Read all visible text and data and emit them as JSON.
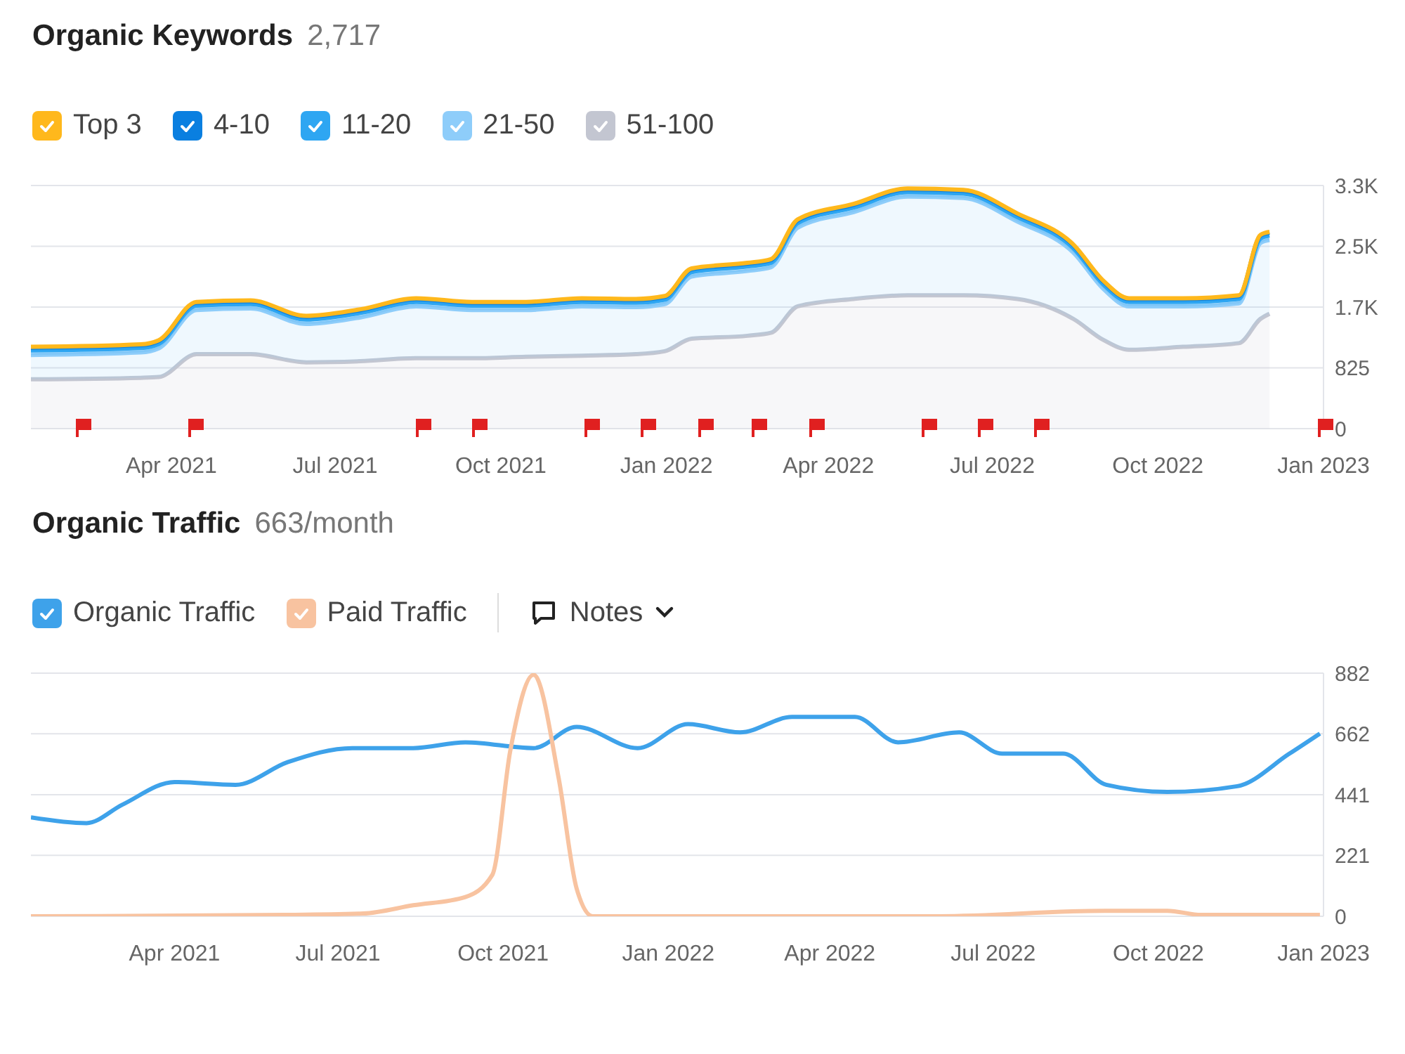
{
  "chart_data": [
    {
      "type": "area",
      "title": "Organic Keywords",
      "subtitle": "2,717",
      "stacked": true,
      "legend": "top left",
      "grid": "y",
      "x": [
        "2021-01-13",
        "2021-03-15",
        "2021-03-25",
        "2021-04-15",
        "2021-05-15",
        "2021-06-15",
        "2021-07-15",
        "2021-08-15",
        "2021-09-15",
        "2021-10-15",
        "2021-11-15",
        "2021-12-15",
        "2021-12-31",
        "2022-01-15",
        "2022-02-15",
        "2022-02-28",
        "2022-03-15",
        "2022-04-15",
        "2022-05-15",
        "2022-06-15",
        "2022-07-15",
        "2022-08-15",
        "2022-09-01",
        "2022-09-15",
        "2022-10-15",
        "2022-11-15",
        "2022-11-27",
        "2022-12-02"
      ],
      "series": [
        {
          "name": "51-100",
          "color": "#c3c6d1",
          "values": [
            670,
            690,
            700,
            1010,
            1010,
            900,
            915,
            955,
            955,
            975,
            990,
            1010,
            1050,
            1220,
            1260,
            1300,
            1660,
            1760,
            1810,
            1810,
            1760,
            1490,
            1200,
            1070,
            1110,
            1160,
            1490,
            1560
          ]
        },
        {
          "name": "21-50",
          "color": "#8ecdfa",
          "values": [
            330,
            345,
            390,
            600,
            620,
            520,
            595,
            705,
            655,
            635,
            670,
            640,
            640,
            845,
            880,
            890,
            1070,
            1180,
            1340,
            1320,
            1050,
            900,
            690,
            590,
            550,
            540,
            1030,
            1000
          ]
        },
        {
          "name": "11-20",
          "color": "#2ea6f2",
          "values": [
            60,
            60,
            60,
            60,
            60,
            60,
            60,
            60,
            60,
            60,
            60,
            60,
            60,
            60,
            60,
            60,
            60,
            60,
            60,
            60,
            60,
            60,
            60,
            60,
            60,
            60,
            60,
            60
          ]
        },
        {
          "name": "4-10",
          "color": "#0a7fe0",
          "values": [
            40,
            40,
            40,
            40,
            40,
            40,
            40,
            40,
            40,
            40,
            40,
            40,
            40,
            40,
            40,
            40,
            40,
            40,
            40,
            40,
            40,
            40,
            40,
            40,
            40,
            40,
            40,
            40
          ]
        },
        {
          "name": "Top 3",
          "color": "#ffb81c",
          "values": [
            10,
            10,
            10,
            10,
            10,
            10,
            10,
            10,
            10,
            10,
            10,
            10,
            10,
            10,
            10,
            10,
            10,
            10,
            10,
            10,
            10,
            10,
            10,
            10,
            10,
            10,
            10,
            10
          ]
        }
      ],
      "xlim": [
        "2021-01-13",
        "2023-01-01"
      ],
      "xticks": [
        {
          "value": "2021-04-01",
          "label": "Apr 2021"
        },
        {
          "value": "2021-07-01",
          "label": "Jul 2021"
        },
        {
          "value": "2021-10-01",
          "label": "Oct 2021"
        },
        {
          "value": "2022-01-01",
          "label": "Jan 2022"
        },
        {
          "value": "2022-04-01",
          "label": "Apr 2022"
        },
        {
          "value": "2022-07-01",
          "label": "Jul 2022"
        },
        {
          "value": "2022-10-01",
          "label": "Oct 2022"
        },
        {
          "value": "2023-01-01",
          "label": "Jan 2023"
        }
      ],
      "ylim": [
        0,
        3300
      ],
      "yticks": [
        0,
        825,
        {
          "value": 1650,
          "label": "1.7K"
        },
        {
          "value": 2475,
          "label": "2.5K"
        },
        {
          "value": 3300,
          "label": "3.3K"
        }
      ]
    },
    {
      "type": "line",
      "title": "Organic Traffic",
      "subtitle": "663/month",
      "legend": "top left",
      "grid": "y",
      "annotations": [
        "Notes"
      ],
      "series": [
        {
          "name": "Organic Traffic",
          "color": "#3ea2ea",
          "x": [
            "2021-01-11",
            "2021-02-11",
            "2021-03-03",
            "2021-04-01",
            "2021-05-05",
            "2021-06-03",
            "2021-07-09",
            "2021-08-12",
            "2021-09-10",
            "2021-10-18",
            "2021-11-11",
            "2021-12-15",
            "2022-01-12",
            "2022-02-10",
            "2022-03-11",
            "2022-04-15",
            "2022-05-09",
            "2022-06-12",
            "2022-07-06",
            "2022-08-09",
            "2022-09-02",
            "2022-10-06",
            "2022-11-14",
            "2022-12-13",
            "2022-12-30"
          ],
          "values": [
            359,
            338,
            405,
            487,
            477,
            559,
            610,
            610,
            631,
            610,
            687,
            610,
            697,
            667,
            723,
            723,
            631,
            667,
            590,
            590,
            477,
            451,
            472,
            590,
            663
          ]
        },
        {
          "name": "Paid Traffic",
          "color": "#f8c3a0",
          "x": [
            "2021-01-11",
            "2021-06-01",
            "2021-07-15",
            "2021-08-12",
            "2021-09-10",
            "2021-09-25",
            "2021-10-05",
            "2021-10-18",
            "2021-11-01",
            "2021-11-11",
            "2021-11-20",
            "2022-06-01",
            "2022-09-01",
            "2022-10-06",
            "2022-10-25",
            "2022-12-30"
          ],
          "values": [
            0,
            5,
            10,
            40,
            70,
            150,
            600,
            876,
            500,
            100,
            0,
            0,
            20,
            20,
            5,
            5
          ]
        }
      ],
      "xlim": [
        "2021-01-11",
        "2023-01-01"
      ],
      "xticks": [
        {
          "value": "2021-04-01",
          "label": "Apr 2021"
        },
        {
          "value": "2021-07-01",
          "label": "Jul 2021"
        },
        {
          "value": "2021-10-01",
          "label": "Oct 2021"
        },
        {
          "value": "2022-01-01",
          "label": "Jan 2022"
        },
        {
          "value": "2022-04-01",
          "label": "Apr 2022"
        },
        {
          "value": "2022-07-01",
          "label": "Jul 2022"
        },
        {
          "value": "2022-10-01",
          "label": "Oct 2022"
        },
        {
          "value": "2023-01-01",
          "label": "Jan 2023"
        }
      ],
      "ylim": [
        0,
        882
      ],
      "yticks": [
        0,
        221,
        441,
        662,
        882
      ]
    }
  ]
}
